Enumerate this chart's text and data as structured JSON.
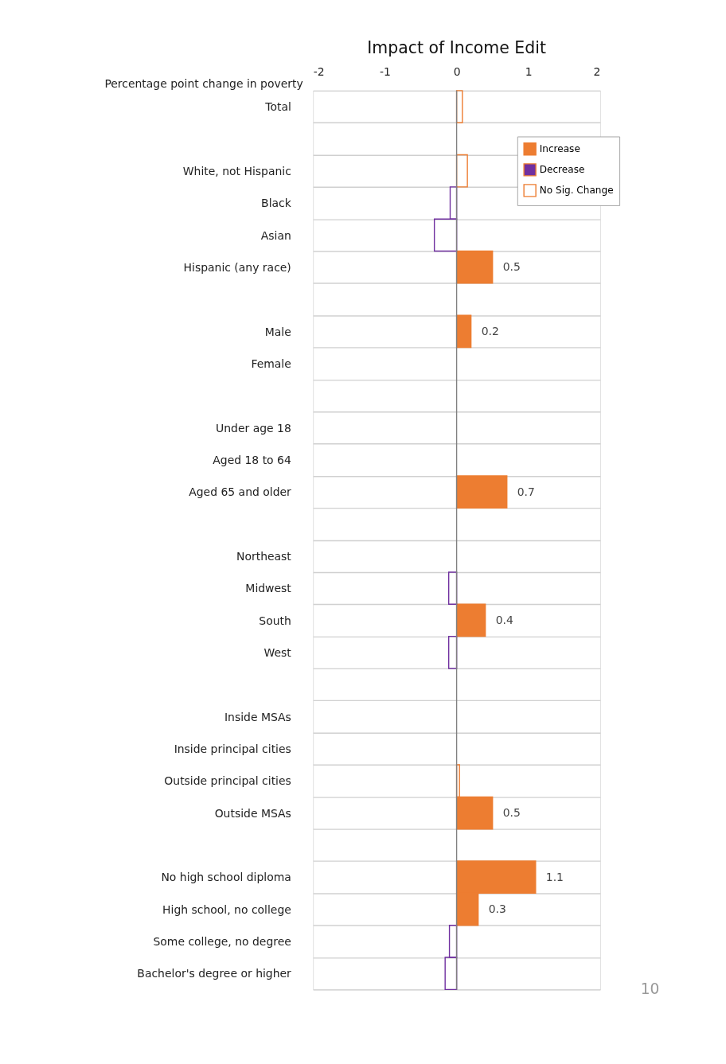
{
  "chart_data": {
    "type": "bar",
    "orientation": "horizontal",
    "title": "Impact of Income Edit",
    "xlabel": "Percentage point change in poverty",
    "categories": [
      "Total",
      null,
      "White, not Hispanic",
      "Black",
      "Asian",
      "Hispanic (any race)",
      null,
      "Male",
      "Female",
      null,
      "Under age 18",
      "Aged 18 to 64",
      "Aged 65 and older",
      null,
      "Northeast",
      "Midwest",
      "South",
      "West",
      null,
      "Inside MSAs",
      "Inside principal cities",
      "Outside principal cities",
      "Outside MSAs",
      null,
      "No high school diploma",
      "High school, no college",
      "Some college, no degree",
      "Bachelor's degree or higher"
    ],
    "series": [
      {
        "name": "Increase",
        "color": "#ed7d31",
        "values": [
          null,
          null,
          null,
          null,
          null,
          0.5,
          null,
          0.2,
          null,
          null,
          null,
          null,
          0.7,
          null,
          null,
          null,
          0.4,
          null,
          null,
          null,
          null,
          null,
          0.5,
          null,
          1.1,
          0.3,
          null,
          null
        ],
        "value_labels": [
          null,
          null,
          null,
          null,
          null,
          "0.5",
          null,
          "0.2",
          null,
          null,
          null,
          null,
          "0.7",
          null,
          null,
          null,
          "0.4",
          null,
          null,
          null,
          null,
          null,
          "0.5",
          null,
          "1.1",
          "0.3",
          null,
          null
        ]
      },
      {
        "name": "Decrease",
        "color": "#7030a0",
        "values": [
          null,
          null,
          null,
          null,
          null,
          null,
          null,
          null,
          null,
          null,
          null,
          null,
          null,
          null,
          null,
          null,
          null,
          null,
          null,
          null,
          null,
          null,
          null,
          null,
          null,
          null,
          null,
          null
        ]
      },
      {
        "name": "No Sig. Change",
        "color": "#ed7d31",
        "values": [
          0.08,
          null,
          0.15,
          -0.09,
          -0.31,
          null,
          null,
          null,
          null,
          null,
          null,
          null,
          null,
          null,
          null,
          -0.11,
          null,
          -0.11,
          null,
          null,
          null,
          0.04,
          null,
          null,
          null,
          null,
          -0.1,
          -0.16
        ],
        "colors": [
          "#ed7d31",
          null,
          "#ed7d31",
          "#7030a0",
          "#7030a0",
          null,
          null,
          null,
          null,
          null,
          null,
          null,
          null,
          null,
          null,
          "#7030a0",
          null,
          "#7030a0",
          null,
          null,
          null,
          "#ed7d31",
          null,
          null,
          null,
          null,
          "#7030a0",
          "#7030a0"
        ]
      }
    ],
    "xlim": [
      -2,
      2
    ],
    "xticks": [
      -2,
      -1,
      0,
      1,
      2
    ],
    "ref_lines": [
      {
        "axis": "x",
        "value": 0,
        "color": "#808080"
      }
    ],
    "grid": "y",
    "legend": "top right",
    "annotations": [
      "10"
    ]
  }
}
